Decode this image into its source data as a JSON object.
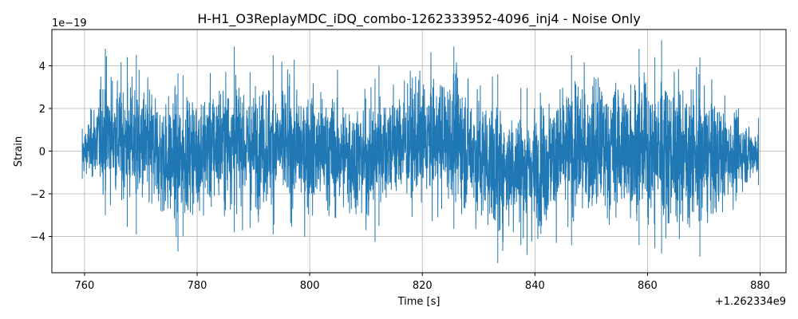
{
  "chart_data": {
    "type": "line",
    "title": "H-H1_O3ReplayMDC_iDQ_combo-1262333952-4096_inj4 - Noise Only",
    "xlabel": "Time [s]",
    "ylabel": "Strain",
    "x_offset_label": "+1.262334e9",
    "y_scale_label": "1e−19",
    "xlim": [
      754.2,
      884.6
    ],
    "ylim": [
      -5.7,
      5.7
    ],
    "x_ticks": [
      760,
      780,
      800,
      820,
      840,
      860,
      880
    ],
    "x_tick_labels": [
      "760",
      "780",
      "800",
      "820",
      "840",
      "860",
      "880"
    ],
    "y_ticks": [
      -4,
      -2,
      0,
      2,
      4
    ],
    "y_tick_labels": [
      "−4",
      "−2",
      "0",
      "2",
      "4"
    ],
    "grid": true,
    "series": [
      {
        "color": "#1f77b4",
        "x_range": [
          759.6,
          879.7
        ],
        "envelope_x": [
          759.6,
          763.7,
          767.6,
          769.2,
          776.6,
          777.5,
          786.6,
          789.4,
          793.5,
          811.6,
          812.3,
          825.6,
          833.4,
          837.5,
          838.6,
          846.5,
          858.5,
          861.3,
          862.5,
          869.3,
          879.7
        ],
        "envelope_max": [
          1.05,
          4.8,
          4.4,
          4.5,
          3.65,
          3.55,
          4.9,
          3.7,
          4.5,
          3.4,
          4.0,
          4.9,
          3.6,
          2.95,
          2.95,
          4.5,
          4.8,
          4.4,
          5.2,
          4.4,
          1.55
        ],
        "envelope_min": [
          -1.3,
          -3.0,
          -3.55,
          -3.9,
          -4.7,
          -4.0,
          -3.8,
          -3.6,
          -3.9,
          -4.25,
          -3.5,
          -3.65,
          -5.25,
          -4.4,
          -4.85,
          -4.4,
          -4.4,
          -4.55,
          -4.8,
          -4.95,
          -1.6
        ]
      }
    ]
  }
}
